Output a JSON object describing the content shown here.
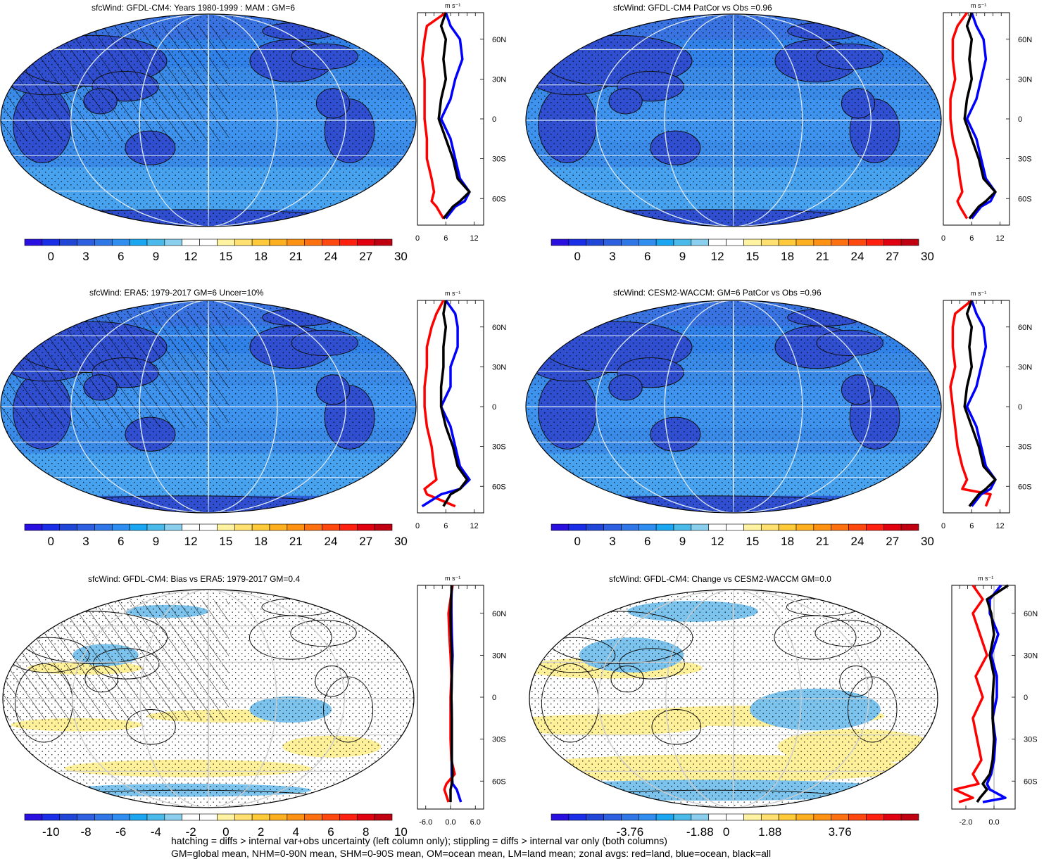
{
  "colors": {
    "abs_scale": [
      "#2a10e0",
      "#1a2ee8",
      "#2046d8",
      "#2c60e0",
      "#2f76e6",
      "#2f8ef0",
      "#1aa6f0",
      "#4abaea",
      "#8acfee",
      "#ffffff",
      "#ffffff",
      "#fff2a0",
      "#ffe070",
      "#ffca3a",
      "#ffb020",
      "#ff9212",
      "#ff7010",
      "#ff4810",
      "#ff2010",
      "#e00010",
      "#c00010"
    ],
    "land": "#2f4fd0",
    "ocean": "#3a8ae8",
    "zonal_land": "#ff0000",
    "zonal_ocean": "#0000ff",
    "zonal_all": "#000000"
  },
  "panels": [
    {
      "id": "model_clim",
      "title": "sfcWind: GFDL-CM4: Years 1980-1999 : MAM : GM=6",
      "kind": "abs",
      "hatch": true,
      "colorbar_labels": [
        "0",
        "3",
        "6",
        "9",
        "12",
        "15",
        "18",
        "21",
        "24",
        "27",
        "30"
      ],
      "zonal_ticks": [
        "0",
        "6",
        "12"
      ],
      "zonal_range": [
        0,
        14
      ],
      "zonal_zero_line": false
    },
    {
      "id": "model_patcor",
      "title": "sfcWind: GFDL-CM4 PatCor vs Obs =0.96",
      "kind": "abs",
      "hatch": false,
      "colorbar_labels": [
        "0",
        "3",
        "6",
        "9",
        "12",
        "15",
        "18",
        "21",
        "24",
        "27",
        "30"
      ],
      "zonal_ticks": [
        "0",
        "6",
        "12"
      ],
      "zonal_range": [
        0,
        14
      ],
      "zonal_zero_line": false
    },
    {
      "id": "obs",
      "title": "sfcWind: ERA5: 1979-2017 GM=6 Uncer=10%",
      "kind": "abs",
      "hatch": true,
      "colorbar_labels": [
        "0",
        "3",
        "6",
        "9",
        "12",
        "15",
        "18",
        "21",
        "24",
        "27",
        "30"
      ],
      "zonal_ticks": [
        "0",
        "6",
        "12"
      ],
      "zonal_range": [
        0,
        14
      ],
      "zonal_zero_line": false
    },
    {
      "id": "cesm",
      "title": "sfcWind: CESM2-WACCM: GM=6 PatCor vs Obs =0.96",
      "kind": "abs",
      "hatch": false,
      "colorbar_labels": [
        "0",
        "3",
        "6",
        "9",
        "12",
        "15",
        "18",
        "21",
        "24",
        "27",
        "30"
      ],
      "zonal_ticks": [
        "0",
        "6",
        "12"
      ],
      "zonal_range": [
        0,
        14
      ],
      "zonal_zero_line": false
    },
    {
      "id": "bias",
      "title": "sfcWind: GFDL-CM4: Bias vs ERA5: 1979-2017 GM=0.4",
      "kind": "diff",
      "hatch": true,
      "colorbar_labels": [
        "-10",
        "-8",
        "-6",
        "-4",
        "-2",
        "0",
        "2",
        "4",
        "6",
        "8",
        "10"
      ],
      "zonal_ticks": [
        "-6.0",
        "0.0",
        "6.0"
      ],
      "zonal_range": [
        -8,
        8
      ],
      "zonal_zero_line": true
    },
    {
      "id": "change",
      "title": "sfcWind: GFDL-CM4: Change vs CESM2-WACCM GM=0.0",
      "kind": "diff",
      "hatch": false,
      "colorbar_labels": [
        "-3.76",
        "-1.88",
        "0",
        "1.88",
        "3.76"
      ],
      "zonal_ticks": [
        "-2.0",
        "0.0"
      ],
      "zonal_range": [
        -3,
        1.5
      ],
      "zonal_zero_line": true
    }
  ],
  "zonal_units": "m s⁻¹",
  "lat_labels": [
    "60N",
    "30N",
    "0",
    "30S",
    "60S"
  ],
  "chart_data": [
    {
      "type": "line",
      "title": "sfcWind: GFDL-CM4: Years 1980-1999 : MAM : GM=6",
      "xlabel": "m s-1",
      "xlim": [
        0,
        14
      ],
      "ylim": [
        -80,
        80
      ],
      "series": [
        {
          "name": "land",
          "lat": [
            80,
            70,
            60,
            45,
            30,
            15,
            0,
            -15,
            -30,
            -45,
            -55,
            -62,
            -66,
            -75
          ],
          "values": [
            6,
            2,
            1.5,
            1,
            1.5,
            1.5,
            1.5,
            2,
            2,
            3,
            3.5,
            3,
            4,
            5.5
          ]
        },
        {
          "name": "ocean",
          "lat": [
            80,
            70,
            60,
            45,
            30,
            15,
            0,
            -15,
            -30,
            -45,
            -55,
            -62,
            -66,
            -75
          ],
          "values": [
            6,
            7,
            9,
            9.5,
            8,
            7,
            5,
            7,
            8,
            9,
            11,
            10,
            8,
            6
          ]
        },
        {
          "name": "all",
          "lat": [
            80,
            70,
            60,
            45,
            30,
            15,
            0,
            -15,
            -30,
            -45,
            -55,
            -62,
            -66,
            -75
          ],
          "values": [
            6,
            5,
            6,
            5.5,
            6,
            5,
            4.5,
            6,
            7.5,
            8.5,
            11,
            9,
            7.5,
            5.5
          ]
        }
      ]
    },
    {
      "type": "line",
      "title": "sfcWind: GFDL-CM4 PatCor vs Obs =0.96",
      "xlabel": "m s-1",
      "xlim": [
        0,
        14
      ],
      "ylim": [
        -80,
        80
      ],
      "series": [
        {
          "name": "land",
          "lat": [
            80,
            70,
            60,
            45,
            30,
            15,
            0,
            -15,
            -30,
            -45,
            -55,
            -62,
            -66,
            -75
          ],
          "values": [
            5,
            3,
            2,
            2,
            2.5,
            1.5,
            1.5,
            2,
            3,
            3.5,
            4,
            3,
            3.5,
            5
          ]
        },
        {
          "name": "ocean",
          "lat": [
            80,
            70,
            60,
            45,
            30,
            15,
            0,
            -15,
            -30,
            -45,
            -55,
            -62,
            -66,
            -75
          ],
          "values": [
            6,
            7,
            8.5,
            9,
            8,
            7,
            5,
            7,
            8,
            9,
            11,
            10,
            8,
            6
          ]
        },
        {
          "name": "all",
          "lat": [
            80,
            70,
            60,
            45,
            30,
            15,
            0,
            -15,
            -30,
            -45,
            -55,
            -62,
            -66,
            -75
          ],
          "values": [
            6,
            5,
            6,
            5.5,
            6,
            5,
            4.5,
            6,
            7.5,
            8.5,
            11,
            9,
            7.5,
            5.5
          ]
        }
      ]
    },
    {
      "type": "line",
      "title": "sfcWind: ERA5: 1979-2017 GM=6 Uncer=10%",
      "xlabel": "m s-1",
      "xlim": [
        0,
        14
      ],
      "ylim": [
        -80,
        80
      ],
      "series": [
        {
          "name": "land",
          "lat": [
            80,
            70,
            60,
            45,
            30,
            15,
            0,
            -15,
            -30,
            -45,
            -55,
            -62,
            -66,
            -75
          ],
          "values": [
            5.5,
            4,
            3,
            2,
            2,
            1.5,
            1.5,
            2,
            3,
            3.5,
            4,
            1.5,
            2,
            8
          ]
        },
        {
          "name": "ocean",
          "lat": [
            80,
            70,
            60,
            45,
            30,
            15,
            0,
            -15,
            -30,
            -45,
            -55,
            -62,
            -66,
            -75
          ],
          "values": [
            6,
            8,
            8.5,
            8.5,
            7,
            7,
            5,
            7,
            8,
            9,
            11,
            9,
            5,
            1
          ]
        },
        {
          "name": "all",
          "lat": [
            80,
            70,
            60,
            45,
            30,
            15,
            0,
            -15,
            -30,
            -45,
            -55,
            -62,
            -66,
            -75
          ],
          "values": [
            6,
            5.5,
            6,
            5.5,
            5.5,
            5,
            5,
            6,
            7.5,
            8.5,
            10.5,
            9,
            7,
            5.5
          ]
        }
      ]
    },
    {
      "type": "line",
      "title": "sfcWind: CESM2-WACCM: GM=6 PatCor vs Obs =0.96",
      "xlabel": "m s-1",
      "xlim": [
        0,
        14
      ],
      "ylim": [
        -80,
        80
      ],
      "series": [
        {
          "name": "land",
          "lat": [
            80,
            70,
            60,
            45,
            30,
            15,
            0,
            -15,
            -30,
            -45,
            -55,
            -62,
            -66,
            -75
          ],
          "values": [
            6,
            2.5,
            2,
            2,
            2.5,
            1.5,
            2,
            2.5,
            3,
            4,
            5,
            4,
            10,
            9
          ]
        },
        {
          "name": "ocean",
          "lat": [
            80,
            70,
            60,
            45,
            30,
            15,
            0,
            -15,
            -30,
            -45,
            -55,
            -62,
            -66,
            -75
          ],
          "values": [
            6,
            7,
            8.5,
            9,
            8,
            7,
            5,
            7,
            8,
            9,
            11,
            10,
            8,
            6
          ]
        },
        {
          "name": "all",
          "lat": [
            80,
            70,
            60,
            45,
            30,
            15,
            0,
            -15,
            -30,
            -45,
            -55,
            -62,
            -66,
            -75
          ],
          "values": [
            6,
            5,
            6,
            5.5,
            6,
            5,
            4.5,
            6,
            7.5,
            8.5,
            11,
            9,
            7.5,
            5.5
          ]
        }
      ]
    },
    {
      "type": "line",
      "title": "sfcWind: GFDL-CM4: Bias vs ERA5: 1979-2017 GM=0.4",
      "xlabel": "m s-1",
      "xlim": [
        -8,
        8
      ],
      "ylim": [
        -80,
        80
      ],
      "series": [
        {
          "name": "land",
          "lat": [
            80,
            70,
            60,
            45,
            30,
            15,
            0,
            -15,
            -30,
            -45,
            -55,
            -62,
            -66,
            -75
          ],
          "values": [
            0.5,
            0,
            -0.5,
            -0.3,
            0,
            0.2,
            0,
            0,
            0,
            0.2,
            1,
            -1,
            -1.5,
            -0.5
          ]
        },
        {
          "name": "ocean",
          "lat": [
            80,
            70,
            60,
            45,
            30,
            15,
            0,
            -15,
            -30,
            -45,
            -55,
            -62,
            -66,
            -75
          ],
          "values": [
            0.3,
            0.2,
            0.2,
            0.3,
            0.5,
            0.3,
            0.2,
            0.3,
            0.3,
            0.3,
            0.3,
            0.5,
            1.5,
            2.5
          ]
        },
        {
          "name": "all",
          "lat": [
            80,
            70,
            60,
            45,
            30,
            15,
            0,
            -15,
            -30,
            -45,
            -55,
            -62,
            -66,
            -75
          ],
          "values": [
            0.3,
            0.1,
            0,
            0.1,
            0.3,
            0.3,
            0.2,
            0.3,
            0.3,
            0.3,
            0.5,
            0.3,
            0,
            0
          ]
        }
      ]
    },
    {
      "type": "line",
      "title": "sfcWind: GFDL-CM4: Change vs CESM2-WACCM GM=0.0",
      "xlabel": "m s-1",
      "xlim": [
        -3,
        1.5
      ],
      "ylim": [
        -80,
        80
      ],
      "series": [
        {
          "name": "land",
          "lat": [
            80,
            70,
            60,
            45,
            30,
            15,
            0,
            -15,
            -30,
            -45,
            -55,
            -62,
            -66,
            -72,
            -75
          ],
          "values": [
            -1.5,
            -0.8,
            -1.5,
            -1,
            -0.5,
            -1.3,
            -0.8,
            -1.5,
            -1.2,
            -0.9,
            -1.5,
            -1.1,
            -2.8,
            -1.5,
            -2.5
          ]
        },
        {
          "name": "ocean",
          "lat": [
            80,
            70,
            60,
            45,
            30,
            15,
            0,
            -15,
            -30,
            -45,
            -55,
            -62,
            -66,
            -72,
            -75
          ],
          "values": [
            0.5,
            -0.3,
            -0.3,
            0.3,
            -0.2,
            0.2,
            0.2,
            -0.1,
            0.1,
            0,
            -0.2,
            -0.5,
            -0.3,
            0.8,
            -0.8
          ]
        },
        {
          "name": "all",
          "lat": [
            80,
            70,
            60,
            45,
            30,
            15,
            0,
            -15,
            -30,
            -45,
            -55,
            -62,
            -66,
            -72,
            -75
          ],
          "values": [
            1,
            -0.5,
            -0.2,
            0,
            -0.3,
            0,
            -0.1,
            -0.1,
            0,
            -0.1,
            -0.3,
            -0.8,
            -0.5,
            -1,
            -1.2
          ]
        }
      ]
    }
  ],
  "footer": {
    "line1": "hatching = diffs > internal var+obs uncertainty (left column only); stippling = diffs > internal var only (both columns)",
    "line2": "GM=global mean, NHM=0-90N mean, SHM=0-90S mean, OM=ocean mean, LM=land mean; zonal avgs: red=land, blue=ocean, black=all"
  }
}
